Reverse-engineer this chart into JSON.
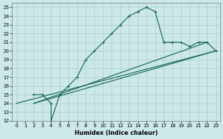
{
  "xlabel": "Humidex (Indice chaleur)",
  "bg_color": "#cce8e8",
  "grid_color": "#aacccc",
  "line_color": "#1a6b5a",
  "xlim": [
    -0.5,
    23.5
  ],
  "ylim": [
    12,
    25.5
  ],
  "xticks": [
    0,
    1,
    2,
    3,
    4,
    5,
    6,
    7,
    8,
    9,
    10,
    11,
    12,
    13,
    14,
    15,
    16,
    17,
    18,
    19,
    20,
    21,
    22,
    23
  ],
  "yticks": [
    12,
    13,
    14,
    15,
    16,
    17,
    18,
    19,
    20,
    21,
    22,
    23,
    24,
    25
  ],
  "series0_x": [
    2,
    3,
    4,
    4,
    5,
    6,
    7,
    8,
    9,
    10,
    11,
    12,
    13,
    14,
    15,
    16,
    17,
    18,
    19,
    20,
    21,
    22,
    23
  ],
  "series0_y": [
    15,
    15,
    14,
    12,
    15,
    16,
    17,
    19,
    20,
    21,
    22,
    23,
    24,
    24.5,
    25,
    24.5,
    21,
    21,
    21,
    20.5,
    21,
    21,
    20
  ],
  "series1_x": [
    2,
    22
  ],
  "series1_y": [
    14,
    21
  ],
  "series2_x": [
    2,
    23
  ],
  "series2_y": [
    14,
    20
  ],
  "series3_x": [
    0,
    23
  ],
  "series3_y": [
    14,
    20
  ]
}
